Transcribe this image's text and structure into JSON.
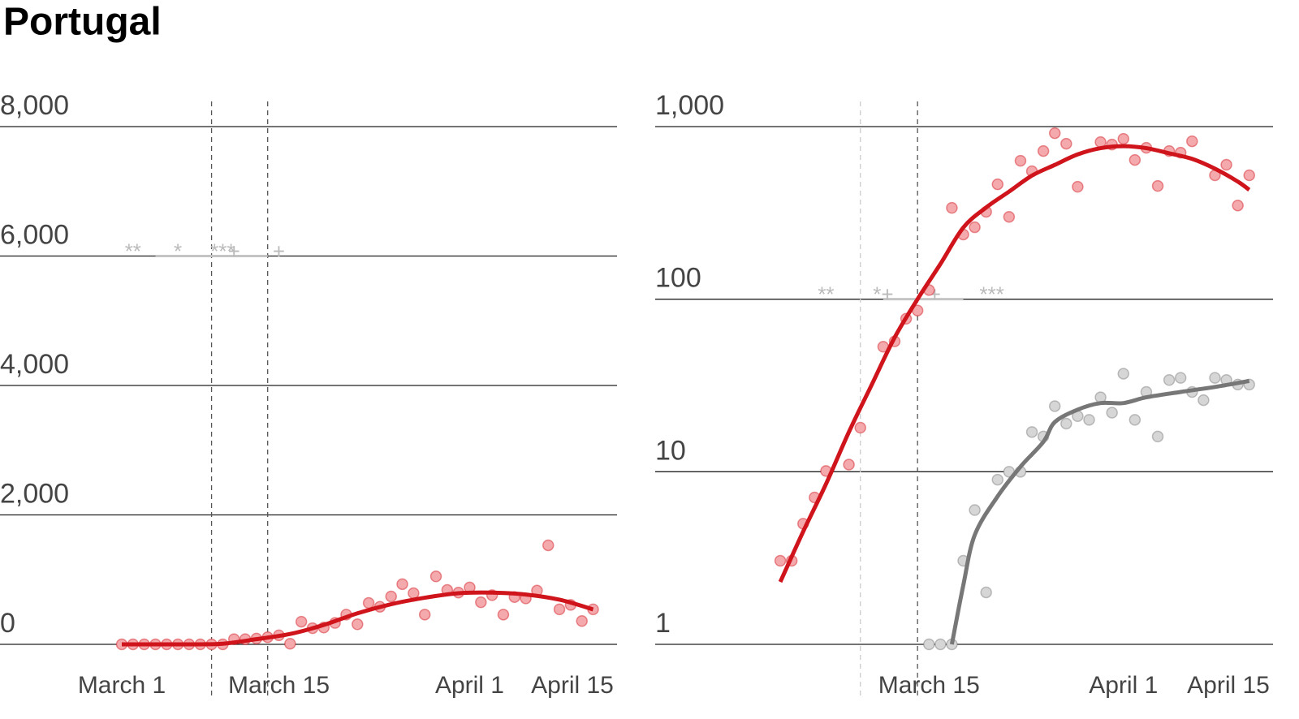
{
  "title": "Portugal",
  "chart_data": [
    {
      "type": "scatter",
      "log": false,
      "xlim": [
        0,
        45
      ],
      "ylim": [
        0,
        8000
      ],
      "xticks": [
        {
          "value": 0,
          "label": "March 1"
        },
        {
          "value": 14,
          "label": "March 15"
        },
        {
          "value": 31,
          "label": "April 1"
        },
        {
          "value": 45,
          "label": "April 15"
        }
      ],
      "yticks": [
        0,
        {
          "value": 2000,
          "label": "2,000"
        },
        {
          "value": 4000,
          "label": "4,000"
        },
        {
          "value": 6000,
          "label": "6,000"
        },
        {
          "value": 8000,
          "label": "8,000"
        }
      ],
      "vlines": [
        {
          "x": 8,
          "color": "#555555"
        },
        {
          "x": 13,
          "color": "#555555"
        }
      ],
      "series": [
        {
          "color": "#d0141c",
          "fill": "#f4a9ac",
          "x": [
            0,
            1,
            2,
            3,
            4,
            5,
            6,
            7,
            8,
            9,
            10,
            11,
            12,
            13,
            14,
            15,
            16,
            17,
            18,
            19,
            20,
            21,
            22,
            23,
            24,
            25,
            26,
            27,
            28,
            29,
            30,
            31,
            32,
            33,
            34,
            35,
            36,
            37,
            38,
            39,
            40,
            41,
            42
          ],
          "values": [
            0,
            0,
            0,
            0,
            0,
            0,
            0,
            0,
            0,
            0,
            80,
            80,
            90,
            110,
            140,
            10,
            350,
            250,
            260,
            330,
            460,
            310,
            640,
            580,
            740,
            930,
            790,
            460,
            1050,
            840,
            800,
            880,
            650,
            760,
            460,
            730,
            710,
            830,
            1530,
            540,
            610,
            360,
            540
          ],
          "trend": {
            "x": [
              0,
              3,
              6,
              9,
              12,
              15,
              18,
              21,
              24,
              27,
              30,
              33,
              36,
              39,
              42
            ],
            "values": [
              0,
              0,
              0,
              10,
              80,
              160,
              300,
              480,
              620,
              720,
              790,
              800,
              770,
              690,
              540
            ]
          }
        }
      ],
      "annotations": [
        {
          "text": "**",
          "x": 1,
          "y": 6000
        },
        {
          "text": "*",
          "x": 5,
          "y": 6000
        },
        {
          "text": "***",
          "x": 9,
          "y": 6000
        },
        {
          "text": "+",
          "x": 10,
          "y": 6000
        },
        {
          "text": "+",
          "x": 14,
          "y": 6000
        }
      ],
      "segment": {
        "x": [
          3,
          13
        ],
        "y": 6000
      }
    },
    {
      "type": "scatter",
      "log": true,
      "xlim": [
        0,
        45
      ],
      "ylim": [
        1,
        1000
      ],
      "xticks": [
        {
          "value": 14,
          "label": "March 15"
        },
        {
          "value": 31,
          "label": "April 1"
        },
        {
          "value": 45,
          "label": "April 15"
        }
      ],
      "yticks": [
        1,
        10,
        100,
        {
          "value": 1000,
          "label": "1,000"
        }
      ],
      "vlines": [
        {
          "x": 8,
          "color": "#cccccc"
        },
        {
          "x": 13,
          "color": "#555555"
        }
      ],
      "series": [
        {
          "color": "#d0141c",
          "fill": "#f4a9ac",
          "x": [
            1,
            2,
            3,
            4,
            5,
            7,
            8,
            10,
            11,
            12,
            13,
            14,
            16,
            17,
            18,
            19,
            20,
            21,
            22,
            23,
            24,
            25,
            26,
            27,
            29,
            30,
            31,
            32,
            33,
            34,
            35,
            36,
            37,
            39,
            40,
            41,
            42
          ],
          "values": [
            3.05,
            3.05,
            5,
            7.1,
            10.1,
            11,
            18,
            53,
            57,
            77,
            86,
            113,
            338,
            237,
            261,
            321,
            463,
            300,
            634,
            551,
            722,
            916,
            796,
            448,
            813,
            787,
            849,
            641,
            754,
            453,
            722,
            706,
            822,
            522,
            601,
            349,
            522
          ],
          "trend": {
            "x": [
              1,
              3,
              5,
              7,
              9,
              11,
              13,
              15,
              17,
              19,
              21,
              23,
              25,
              27,
              29,
              31,
              33,
              35,
              37,
              39,
              41,
              42
            ],
            "values": [
              2.3,
              4.5,
              8.5,
              17,
              32,
              60,
              100,
              160,
              260,
              340,
              420,
              520,
              600,
              690,
              750,
              770,
              750,
              700,
              650,
              570,
              480,
              430
            ]
          }
        },
        {
          "color": "#777777",
          "fill": "#d6d6d6",
          "x": [
            14,
            15,
            16,
            17,
            18,
            19,
            20,
            21,
            22,
            23,
            24,
            25,
            26,
            27,
            28,
            29,
            30,
            31,
            32,
            33,
            34,
            35,
            36,
            37,
            38,
            39,
            40,
            41,
            42
          ],
          "values": [
            1,
            1,
            1,
            3.05,
            6,
            2,
            9,
            10,
            10,
            17,
            16,
            24,
            19,
            21,
            20,
            27,
            22,
            37,
            20,
            29,
            16,
            34,
            35,
            29,
            26,
            35,
            34,
            32,
            32
          ],
          "trend": {
            "x": [
              16,
              17,
              18,
              20,
              22,
              24,
              25,
              27,
              29,
              31,
              33,
              36,
              39,
              42
            ],
            "values": [
              1,
              2.2,
              4.3,
              7.2,
              10.7,
              14.9,
              19.4,
              22.9,
              25,
              25,
              27,
              29,
              31,
              33.6
            ]
          }
        }
      ],
      "annotations": [
        {
          "text": "**",
          "x": 5,
          "y": 100
        },
        {
          "text": "*+",
          "x": 10,
          "y": 100
        },
        {
          "text": "+",
          "x": 14.5,
          "y": 100
        },
        {
          "text": "***",
          "x": 19.5,
          "y": 100
        }
      ],
      "segment": {
        "x": [
          10,
          17
        ],
        "y": 100
      }
    }
  ]
}
